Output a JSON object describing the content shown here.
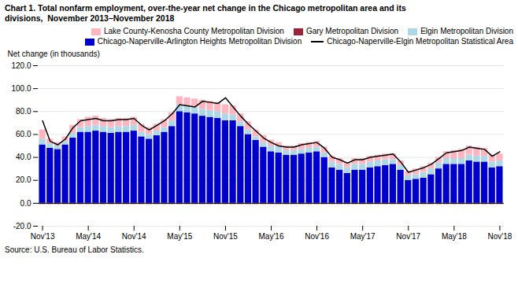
{
  "chart_data": {
    "type": "bar",
    "title": "Chart 1. Total nonfarm employment, over-the-year net change in the Chicago metropolitan area and its\ndivisions,  November 2013–November 2018",
    "ylabel": "Net change (in thousands)",
    "annotations": [
      "Source: U.S. Bureau of Labor Statistics."
    ],
    "stacked": true,
    "grid": true,
    "legend": "upper right",
    "ylim": [
      -20.0,
      120.0
    ],
    "yticks": [
      {
        "value": -20.0,
        "label": "-20.0"
      },
      {
        "value": 0.0,
        "label": "0.0"
      },
      {
        "value": 20.0,
        "label": "20.0"
      },
      {
        "value": 40.0,
        "label": "40.0"
      },
      {
        "value": 60.0,
        "label": "60.0"
      },
      {
        "value": 80.0,
        "label": "80.0"
      },
      {
        "value": 100.0,
        "label": "100.0"
      },
      {
        "value": 120.0,
        "label": "120.0"
      }
    ],
    "categories": [
      "Nov'13",
      null,
      null,
      null,
      null,
      null,
      "May'14",
      null,
      null,
      null,
      null,
      null,
      "Nov'14",
      null,
      null,
      null,
      null,
      null,
      "May'15",
      null,
      null,
      null,
      null,
      null,
      "Nov'15",
      null,
      null,
      null,
      null,
      null,
      "May'16",
      null,
      null,
      null,
      null,
      null,
      "Nov'16",
      null,
      null,
      null,
      null,
      null,
      "May'17",
      null,
      null,
      null,
      null,
      null,
      "Nov'17",
      null,
      null,
      null,
      null,
      null,
      "May'18",
      null,
      null,
      null,
      null,
      null,
      "Nov'18"
    ],
    "series": [
      {
        "name": "Lake County-Kenosha County Metropolitan Division",
        "color": "#FFB6C1",
        "values": [
          8,
          4,
          3,
          4,
          7,
          7,
          8,
          8,
          7,
          7,
          7,
          7,
          7,
          7,
          6,
          6,
          7,
          7,
          7,
          7,
          7,
          8,
          8,
          8,
          8,
          8,
          7,
          7,
          6,
          6,
          5,
          4,
          4,
          4,
          5,
          5,
          5,
          5,
          5,
          5,
          5,
          5,
          5,
          5,
          5,
          5,
          5,
          4,
          4,
          5,
          5,
          5,
          5,
          6,
          7,
          8,
          8,
          8,
          7,
          6,
          6
        ]
      },
      {
        "name": "Gary Metropolitan Division",
        "color": "#9B2335",
        "values": [
          -1,
          -1,
          -1,
          -1,
          -1,
          -1,
          -1,
          -1,
          -1,
          -1,
          -1,
          -1,
          -1,
          -1,
          -1,
          -1,
          -1,
          -1,
          -1,
          -1,
          -1,
          -1,
          -1,
          -1,
          -1,
          -1,
          -1,
          -1,
          -1,
          -1,
          -1,
          -1,
          -1,
          -1,
          -1,
          -1,
          -1,
          -1,
          -1,
          -1,
          -1,
          -1,
          -1,
          -1,
          -1,
          -1,
          -1,
          -1,
          -1,
          -1,
          -1,
          -1,
          -1,
          -1,
          -1,
          -1,
          -1,
          -1,
          -1,
          -1,
          -1
        ]
      },
      {
        "name": "Elgin Metropolitan Division",
        "color": "#ADD8E6",
        "values": [
          5,
          4,
          3,
          3,
          4,
          4,
          5,
          5,
          5,
          5,
          5,
          5,
          5,
          4,
          4,
          4,
          4,
          5,
          6,
          6,
          6,
          6,
          6,
          6,
          6,
          5,
          4,
          4,
          3,
          4,
          5,
          5,
          4,
          4,
          4,
          4,
          4,
          4,
          5,
          5,
          5,
          5,
          5,
          5,
          5,
          5,
          4,
          4,
          4,
          4,
          5,
          5,
          5,
          5,
          5,
          5,
          5,
          5,
          5,
          5,
          5
        ]
      },
      {
        "name": "Chicago-Naperville-Arlington Heights Metropolitan Division",
        "color": "#0000CD",
        "values": [
          51,
          48,
          47,
          51,
          57,
          62,
          62,
          63,
          62,
          61,
          62,
          62,
          63,
          58,
          56,
          59,
          62,
          67,
          80,
          79,
          78,
          76,
          75,
          74,
          72,
          72,
          67,
          60,
          55,
          49,
          45,
          44,
          42,
          42,
          43,
          44,
          45,
          40,
          31,
          29,
          26,
          29,
          29,
          31,
          32,
          33,
          34,
          29,
          20,
          21,
          22,
          25,
          30,
          34,
          34,
          34,
          37,
          36,
          36,
          31,
          32
        ]
      },
      {
        "name": "Chicago-Naperville-Elgin Metropolitan Statistical Area",
        "color": "#000000",
        "type": "line",
        "values": [
          72,
          54,
          51,
          56,
          66,
          72,
          73,
          74,
          72,
          72,
          73,
          73,
          74,
          68,
          64,
          68,
          72,
          78,
          86,
          85,
          84,
          89,
          88,
          87,
          92,
          84,
          76,
          69,
          63,
          57,
          53,
          50,
          49,
          49,
          51,
          52,
          53,
          48,
          40,
          38,
          35,
          38,
          38,
          40,
          41,
          42,
          43,
          36,
          27,
          29,
          31,
          34,
          39,
          44,
          45,
          46,
          49,
          48,
          47,
          41,
          45
        ]
      }
    ]
  }
}
